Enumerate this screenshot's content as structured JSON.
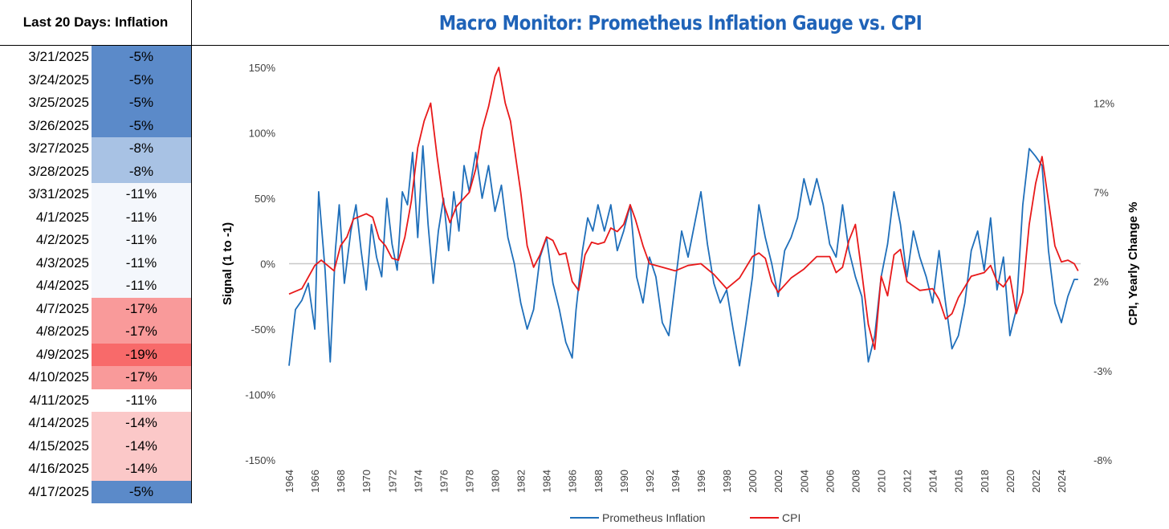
{
  "side_panel": {
    "title": "Last 20 Days: Inflation",
    "rows": [
      {
        "date": "3/21/2025",
        "value": "-5%",
        "color": "#5b8ac9"
      },
      {
        "date": "3/24/2025",
        "value": "-5%",
        "color": "#5b8ac9"
      },
      {
        "date": "3/25/2025",
        "value": "-5%",
        "color": "#5b8ac9"
      },
      {
        "date": "3/26/2025",
        "value": "-5%",
        "color": "#5b8ac9"
      },
      {
        "date": "3/27/2025",
        "value": "-8%",
        "color": "#a8c2e4"
      },
      {
        "date": "3/28/2025",
        "value": "-8%",
        "color": "#a8c2e4"
      },
      {
        "date": "3/31/2025",
        "value": "-11%",
        "color": "#f4f7fc"
      },
      {
        "date": "4/1/2025",
        "value": "-11%",
        "color": "#f4f7fc"
      },
      {
        "date": "4/2/2025",
        "value": "-11%",
        "color": "#f4f7fc"
      },
      {
        "date": "4/3/2025",
        "value": "-11%",
        "color": "#f4f7fc"
      },
      {
        "date": "4/4/2025",
        "value": "-11%",
        "color": "#f4f7fc"
      },
      {
        "date": "4/7/2025",
        "value": "-17%",
        "color": "#f99a9a"
      },
      {
        "date": "4/8/2025",
        "value": "-17%",
        "color": "#f99a9a"
      },
      {
        "date": "4/9/2025",
        "value": "-19%",
        "color": "#f86a6a"
      },
      {
        "date": "4/10/2025",
        "value": "-17%",
        "color": "#f99a9a"
      },
      {
        "date": "4/11/2025",
        "value": "-11%",
        "color": "#ffffff"
      },
      {
        "date": "4/14/2025",
        "value": "-14%",
        "color": "#fbc8c8"
      },
      {
        "date": "4/15/2025",
        "value": "-14%",
        "color": "#fbc8c8"
      },
      {
        "date": "4/16/2025",
        "value": "-14%",
        "color": "#fbc8c8"
      },
      {
        "date": "4/17/2025",
        "value": "-5%",
        "color": "#5b8ac9"
      }
    ]
  },
  "chart_data": {
    "type": "line",
    "title": "Macro Monitor: Prometheus Inflation Gauge vs. CPI",
    "ylabel": "Signal  (1 to -1)",
    "y2label": "CPI, Yearly Change %",
    "ylim": [
      -1.5,
      1.5
    ],
    "y2lim": [
      -8,
      14
    ],
    "xlim": [
      1964,
      2025.5
    ],
    "yticks": [
      "-150%",
      "-100%",
      "-50%",
      "0%",
      "50%",
      "100%",
      "150%"
    ],
    "y2ticks": [
      "-8%",
      "-3%",
      "2%",
      "7%",
      "12%"
    ],
    "xticks": [
      "1964",
      "1966",
      "1968",
      "1970",
      "1972",
      "1974",
      "1976",
      "1978",
      "1980",
      "1982",
      "1984",
      "1986",
      "1988",
      "1990",
      "1992",
      "1994",
      "1996",
      "1998",
      "2000",
      "2002",
      "2004",
      "2006",
      "2008",
      "2010",
      "2012",
      "2014",
      "2016",
      "2018",
      "2020",
      "2022",
      "2024"
    ],
    "legend_position": "bottom-center",
    "grid": false,
    "series": [
      {
        "name": "Prometheus Inflation",
        "axis": "left",
        "color": "#1f6fba",
        "x": [
          1964.0,
          1964.5,
          1965.0,
          1965.5,
          1966.0,
          1966.3,
          1966.8,
          1967.2,
          1967.6,
          1967.9,
          1968.3,
          1968.8,
          1969.2,
          1969.6,
          1970.0,
          1970.4,
          1970.8,
          1971.2,
          1971.6,
          1972.0,
          1972.4,
          1972.8,
          1973.2,
          1973.6,
          1974.0,
          1974.4,
          1974.8,
          1975.2,
          1975.6,
          1976.0,
          1976.4,
          1976.8,
          1977.2,
          1977.6,
          1978.0,
          1978.5,
          1979.0,
          1979.5,
          1980.0,
          1980.5,
          1981.0,
          1981.5,
          1982.0,
          1982.5,
          1983.0,
          1983.5,
          1984.0,
          1984.5,
          1985.0,
          1985.5,
          1986.0,
          1986.3,
          1986.8,
          1987.2,
          1987.6,
          1988.0,
          1988.5,
          1989.0,
          1989.5,
          1990.0,
          1990.5,
          1991.0,
          1991.5,
          1992.0,
          1992.5,
          1993.0,
          1993.5,
          1994.0,
          1994.5,
          1995.0,
          1995.5,
          1996.0,
          1996.5,
          1997.0,
          1997.5,
          1998.0,
          1998.5,
          1999.0,
          1999.5,
          2000.0,
          2000.5,
          2001.0,
          2001.5,
          2002.0,
          2002.5,
          2003.0,
          2003.5,
          2004.0,
          2004.5,
          2005.0,
          2005.5,
          2006.0,
          2006.5,
          2007.0,
          2007.5,
          2008.0,
          2008.5,
          2009.0,
          2009.5,
          2010.0,
          2010.5,
          2011.0,
          2011.5,
          2012.0,
          2012.5,
          2013.0,
          2013.5,
          2014.0,
          2014.5,
          2015.0,
          2015.5,
          2016.0,
          2016.5,
          2017.0,
          2017.5,
          2018.0,
          2018.5,
          2019.0,
          2019.5,
          2020.0,
          2020.5,
          2021.0,
          2021.5,
          2022.0,
          2022.5,
          2023.0,
          2023.5,
          2024.0,
          2024.5,
          2025.0,
          2025.3
        ],
        "y": [
          -0.78,
          -0.35,
          -0.28,
          -0.15,
          -0.5,
          0.55,
          -0.05,
          -0.75,
          0.1,
          0.45,
          -0.15,
          0.25,
          0.45,
          0.1,
          -0.2,
          0.3,
          0.05,
          -0.1,
          0.5,
          0.15,
          -0.05,
          0.55,
          0.45,
          0.85,
          0.2,
          0.9,
          0.3,
          -0.15,
          0.25,
          0.5,
          0.1,
          0.55,
          0.25,
          0.75,
          0.55,
          0.85,
          0.5,
          0.75,
          0.4,
          0.6,
          0.2,
          0.0,
          -0.3,
          -0.5,
          -0.35,
          0.05,
          0.2,
          -0.15,
          -0.35,
          -0.6,
          -0.72,
          -0.35,
          0.1,
          0.35,
          0.25,
          0.45,
          0.25,
          0.45,
          0.1,
          0.25,
          0.45,
          -0.1,
          -0.3,
          0.05,
          -0.1,
          -0.45,
          -0.55,
          -0.15,
          0.25,
          0.05,
          0.3,
          0.55,
          0.15,
          -0.15,
          -0.3,
          -0.2,
          -0.5,
          -0.78,
          -0.45,
          -0.1,
          0.45,
          0.2,
          0.0,
          -0.25,
          0.1,
          0.2,
          0.35,
          0.65,
          0.45,
          0.65,
          0.45,
          0.15,
          0.05,
          0.45,
          0.1,
          -0.1,
          -0.25,
          -0.75,
          -0.55,
          -0.1,
          0.15,
          0.55,
          0.3,
          -0.1,
          0.25,
          0.05,
          -0.1,
          -0.3,
          0.1,
          -0.3,
          -0.65,
          -0.55,
          -0.3,
          0.1,
          0.25,
          -0.05,
          0.35,
          -0.2,
          0.05,
          -0.55,
          -0.35,
          0.45,
          0.88,
          0.82,
          0.75,
          0.1,
          -0.3,
          -0.45,
          -0.25,
          -0.12,
          -0.12
        ]
      },
      {
        "name": "CPI",
        "axis": "right",
        "color": "#e8191a",
        "x": [
          1964.0,
          1965.0,
          1966.0,
          1966.5,
          1967.5,
          1968.0,
          1968.5,
          1969.0,
          1970.0,
          1970.5,
          1971.0,
          1971.5,
          1972.0,
          1972.5,
          1973.0,
          1973.5,
          1974.0,
          1974.5,
          1975.0,
          1975.5,
          1976.0,
          1976.5,
          1977.0,
          1977.5,
          1978.0,
          1978.5,
          1979.0,
          1979.5,
          1980.0,
          1980.3,
          1980.8,
          1981.2,
          1981.6,
          1982.0,
          1982.5,
          1983.0,
          1983.5,
          1984.0,
          1984.5,
          1985.0,
          1985.5,
          1986.0,
          1986.5,
          1987.0,
          1987.5,
          1988.0,
          1988.5,
          1989.0,
          1989.5,
          1990.0,
          1990.5,
          1990.9,
          1991.5,
          1992.0,
          1993.0,
          1994.0,
          1995.0,
          1996.0,
          1997.0,
          1998.0,
          1999.0,
          2000.0,
          2000.5,
          2001.0,
          2001.5,
          2002.0,
          2003.0,
          2004.0,
          2005.0,
          2006.0,
          2006.5,
          2007.0,
          2007.5,
          2008.0,
          2008.5,
          2009.0,
          2009.5,
          2010.0,
          2010.5,
          2011.0,
          2011.5,
          2012.0,
          2013.0,
          2014.0,
          2014.5,
          2015.0,
          2015.5,
          2016.0,
          2017.0,
          2018.0,
          2018.5,
          2019.0,
          2019.5,
          2020.0,
          2020.5,
          2021.0,
          2021.5,
          2022.0,
          2022.5,
          2023.0,
          2023.5,
          2024.0,
          2024.5,
          2025.0,
          2025.3
        ],
        "y": [
          1.3,
          1.6,
          2.9,
          3.2,
          2.6,
          4.0,
          4.5,
          5.5,
          5.8,
          5.6,
          4.4,
          4.0,
          3.3,
          3.2,
          4.5,
          6.5,
          9.5,
          11.0,
          12.0,
          9.0,
          6.4,
          5.3,
          6.2,
          6.6,
          7.0,
          8.3,
          10.5,
          11.8,
          13.5,
          14.0,
          12.0,
          11.0,
          9.0,
          7.0,
          4.0,
          2.8,
          3.5,
          4.5,
          4.3,
          3.5,
          3.6,
          2.0,
          1.5,
          3.5,
          4.2,
          4.1,
          4.2,
          5.0,
          4.8,
          5.2,
          6.3,
          5.5,
          4.0,
          3.0,
          2.8,
          2.6,
          2.9,
          3.0,
          2.4,
          1.6,
          2.2,
          3.4,
          3.6,
          3.3,
          2.0,
          1.4,
          2.2,
          2.7,
          3.4,
          3.4,
          2.5,
          2.8,
          4.3,
          5.2,
          2.5,
          -0.4,
          -1.8,
          2.3,
          1.2,
          3.5,
          3.8,
          2.0,
          1.5,
          1.6,
          1.0,
          -0.1,
          0.2,
          1.1,
          2.3,
          2.5,
          2.9,
          2.0,
          1.7,
          2.3,
          0.2,
          1.4,
          5.2,
          7.5,
          9.0,
          6.5,
          4.0,
          3.1,
          3.2,
          3.0,
          2.6
        ]
      }
    ]
  }
}
